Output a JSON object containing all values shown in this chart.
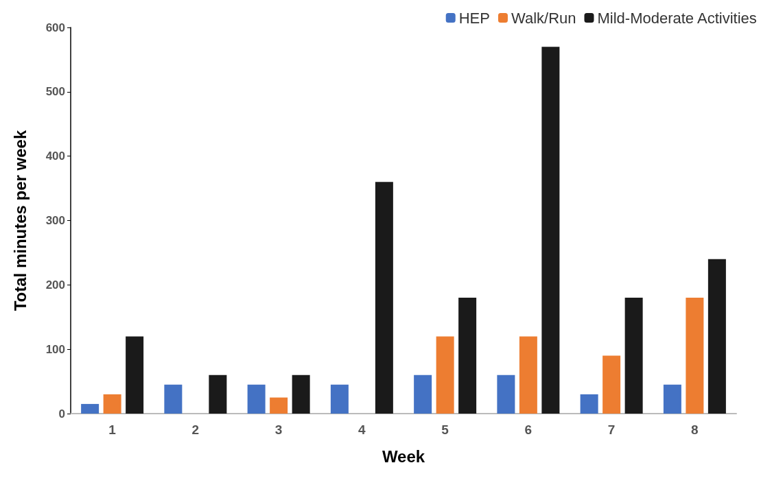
{
  "chart_data": {
    "type": "bar",
    "xlabel": "Week",
    "ylabel": "Total minutes per week",
    "categories": [
      "1",
      "2",
      "3",
      "4",
      "5",
      "6",
      "7",
      "8"
    ],
    "series": [
      {
        "name": "HEP",
        "color": "#4472c4",
        "values": [
          15,
          45,
          45,
          45,
          60,
          60,
          30,
          45
        ]
      },
      {
        "name": "Walk/Run",
        "color": "#ed7d31",
        "values": [
          30,
          0,
          25,
          0,
          120,
          120,
          90,
          180
        ]
      },
      {
        "name": "Mild-Moderate Activities",
        "color": "#1a1a1a",
        "values": [
          120,
          60,
          60,
          360,
          180,
          570,
          180,
          240
        ]
      }
    ],
    "ylim": [
      0,
      600
    ],
    "yticks": [
      0,
      100,
      200,
      300,
      400,
      500,
      600
    ],
    "grid": false,
    "legend": "top right"
  }
}
